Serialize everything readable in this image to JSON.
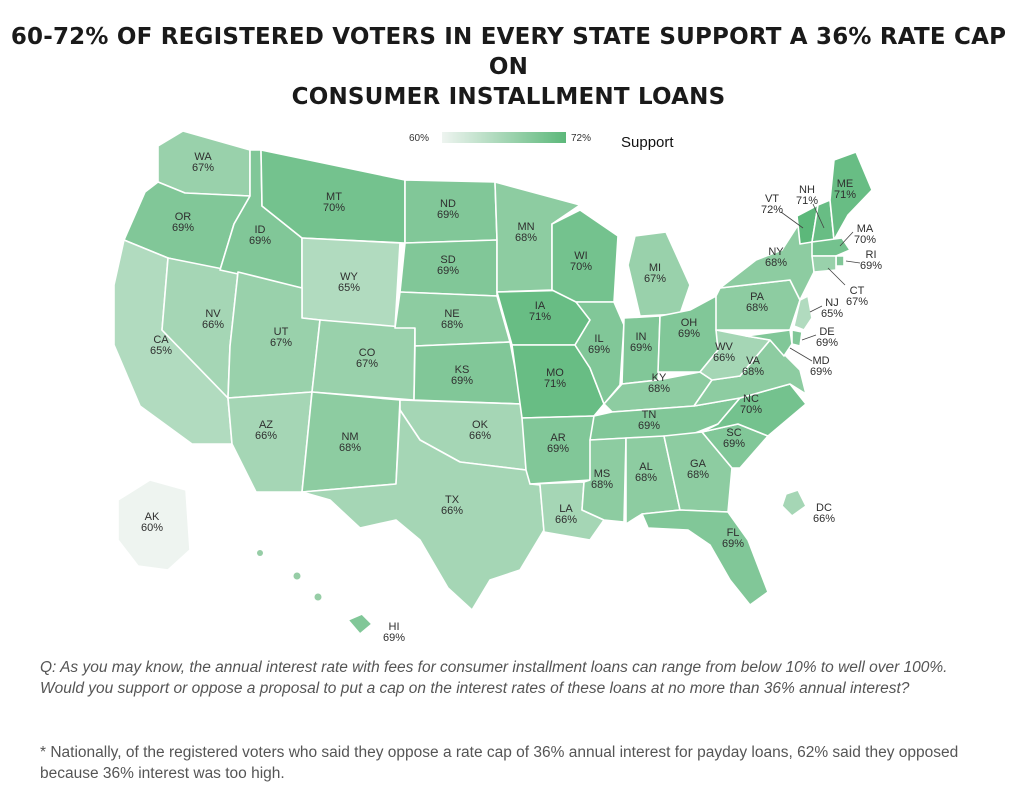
{
  "title": {
    "line1": "60-72% OF REGISTERED VOTERS IN EVERY STATE SUPPORT A 36% RATE CAP ON",
    "line2": "CONSUMER INSTALLMENT LOANS"
  },
  "legend": {
    "min": "60%",
    "max": "72%",
    "label": "Support",
    "min_value": 60,
    "max_value": 72
  },
  "colors": {
    "low": "#eef4f0",
    "high": "#5cb87a",
    "border": "#ffffff",
    "text": "#2f2f2f"
  },
  "states": [
    {
      "code": "WA",
      "value": 67,
      "pct": "67%"
    },
    {
      "code": "OR",
      "value": 69,
      "pct": "69%"
    },
    {
      "code": "CA",
      "value": 65,
      "pct": "65%"
    },
    {
      "code": "NV",
      "value": 66,
      "pct": "66%"
    },
    {
      "code": "ID",
      "value": 69,
      "pct": "69%"
    },
    {
      "code": "MT",
      "value": 70,
      "pct": "70%"
    },
    {
      "code": "WY",
      "value": 65,
      "pct": "65%"
    },
    {
      "code": "UT",
      "value": 67,
      "pct": "67%"
    },
    {
      "code": "AZ",
      "value": 66,
      "pct": "66%"
    },
    {
      "code": "CO",
      "value": 67,
      "pct": "67%"
    },
    {
      "code": "NM",
      "value": 68,
      "pct": "68%"
    },
    {
      "code": "ND",
      "value": 69,
      "pct": "69%"
    },
    {
      "code": "SD",
      "value": 69,
      "pct": "69%"
    },
    {
      "code": "NE",
      "value": 68,
      "pct": "68%"
    },
    {
      "code": "KS",
      "value": 69,
      "pct": "69%"
    },
    {
      "code": "OK",
      "value": 66,
      "pct": "66%"
    },
    {
      "code": "TX",
      "value": 66,
      "pct": "66%"
    },
    {
      "code": "MN",
      "value": 68,
      "pct": "68%"
    },
    {
      "code": "IA",
      "value": 71,
      "pct": "71%"
    },
    {
      "code": "MO",
      "value": 71,
      "pct": "71%"
    },
    {
      "code": "AR",
      "value": 69,
      "pct": "69%"
    },
    {
      "code": "LA",
      "value": 66,
      "pct": "66%"
    },
    {
      "code": "WI",
      "value": 70,
      "pct": "70%"
    },
    {
      "code": "IL",
      "value": 69,
      "pct": "69%"
    },
    {
      "code": "MI",
      "value": 67,
      "pct": "67%"
    },
    {
      "code": "IN",
      "value": 69,
      "pct": "69%"
    },
    {
      "code": "OH",
      "value": 69,
      "pct": "69%"
    },
    {
      "code": "KY",
      "value": 68,
      "pct": "68%"
    },
    {
      "code": "TN",
      "value": 69,
      "pct": "69%"
    },
    {
      "code": "MS",
      "value": 68,
      "pct": "68%"
    },
    {
      "code": "AL",
      "value": 68,
      "pct": "68%"
    },
    {
      "code": "GA",
      "value": 68,
      "pct": "68%"
    },
    {
      "code": "FL",
      "value": 69,
      "pct": "69%"
    },
    {
      "code": "SC",
      "value": 69,
      "pct": "69%"
    },
    {
      "code": "NC",
      "value": 70,
      "pct": "70%"
    },
    {
      "code": "VA",
      "value": 68,
      "pct": "68%"
    },
    {
      "code": "WV",
      "value": 66,
      "pct": "66%"
    },
    {
      "code": "PA",
      "value": 68,
      "pct": "68%"
    },
    {
      "code": "NY",
      "value": 68,
      "pct": "68%"
    },
    {
      "code": "VT",
      "value": 72,
      "pct": "72%"
    },
    {
      "code": "NH",
      "value": 71,
      "pct": "71%"
    },
    {
      "code": "ME",
      "value": 71,
      "pct": "71%"
    },
    {
      "code": "MA",
      "value": 70,
      "pct": "70%"
    },
    {
      "code": "RI",
      "value": 69,
      "pct": "69%"
    },
    {
      "code": "CT",
      "value": 67,
      "pct": "67%"
    },
    {
      "code": "NJ",
      "value": 65,
      "pct": "65%"
    },
    {
      "code": "DE",
      "value": 69,
      "pct": "69%"
    },
    {
      "code": "MD",
      "value": 69,
      "pct": "69%"
    },
    {
      "code": "DC",
      "value": 66,
      "pct": "66%"
    },
    {
      "code": "AK",
      "value": 60,
      "pct": "60%"
    },
    {
      "code": "HI",
      "value": 69,
      "pct": "69%"
    }
  ],
  "question": "Q: As you may know, the annual interest rate with fees for consumer installment loans can range from below 10% to well over 100%. Would you support or oppose a proposal to put a cap on the interest rates of these loans at no more than 36% annual interest?",
  "footnote": "* Nationally, of the registered voters who said they oppose a rate cap of 36% annual interest for payday loans, 62% said they opposed because 36% interest was too high."
}
